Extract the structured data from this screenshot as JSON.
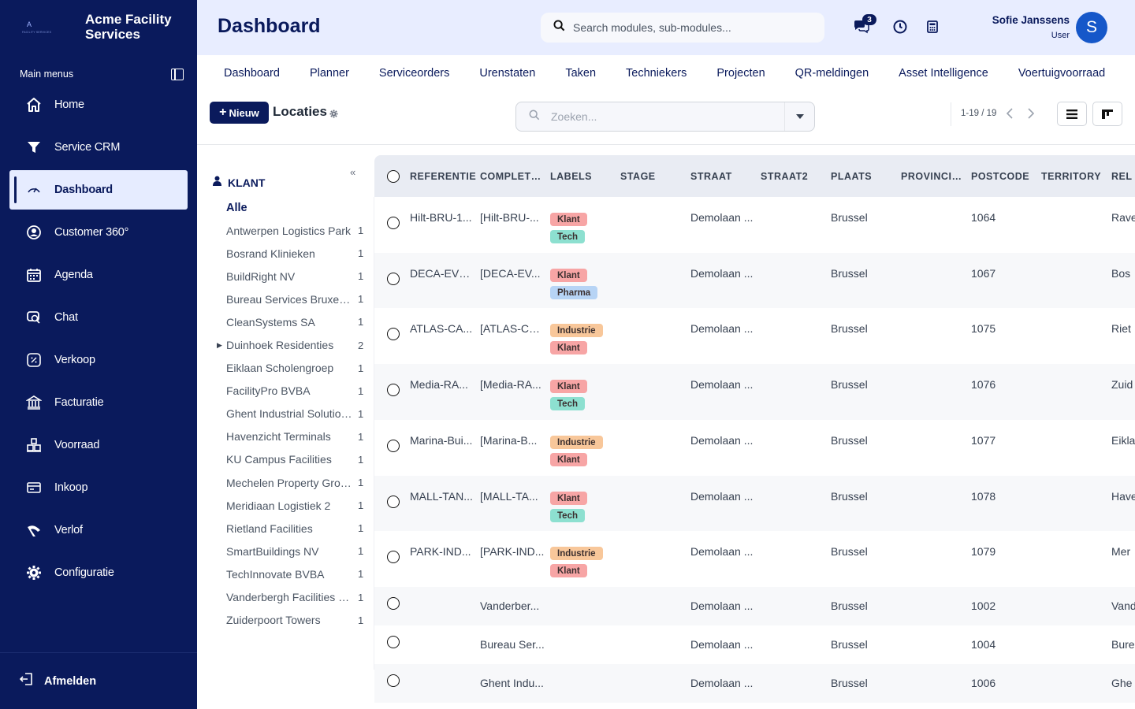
{
  "brand": {
    "logo_letter": "A",
    "logo_sub": "FACILITY SERVICES",
    "name": "Acme Facility Services"
  },
  "sidebar": {
    "section_label": "Main menus",
    "items": [
      {
        "label": "Home",
        "icon": "home-icon"
      },
      {
        "label": "Service CRM",
        "icon": "funnel-icon"
      },
      {
        "label": "Dashboard",
        "icon": "gauge-icon",
        "active": true
      },
      {
        "label": "Customer 360°",
        "icon": "user-circle-icon"
      },
      {
        "label": "Agenda",
        "icon": "calendar-icon"
      },
      {
        "label": "Chat",
        "icon": "chat-icon"
      },
      {
        "label": "Verkoop",
        "icon": "sales-icon"
      },
      {
        "label": "Facturatie",
        "icon": "bank-icon"
      },
      {
        "label": "Voorraad",
        "icon": "warehouse-icon"
      },
      {
        "label": "Inkoop",
        "icon": "card-icon"
      },
      {
        "label": "Verlof",
        "icon": "plane-icon"
      },
      {
        "label": "Configuratie",
        "icon": "gear-icon"
      }
    ],
    "logout_label": "Afmelden"
  },
  "header": {
    "title": "Dashboard",
    "search_placeholder": "Search modules, sub-modules...",
    "chat_badge": "3",
    "user_name": "Sofie Janssens",
    "user_role": "User",
    "avatar_initial": "S"
  },
  "module_tabs": [
    "Dashboard",
    "Planner",
    "Serviceorders",
    "Urenstaten",
    "Taken",
    "Techniekers",
    "Projecten",
    "QR-meldingen",
    "Asset Intelligence",
    "Voertuigvoorraad"
  ],
  "controls": {
    "new_button": "Nieuw",
    "title": "Locaties",
    "search_placeholder": "Zoeken...",
    "pager": "1-19 / 19"
  },
  "filter": {
    "heading": "KLANT",
    "all_label": "Alle",
    "items": [
      {
        "name": "Antwerpen Logistics Park",
        "count": "1"
      },
      {
        "name": "Bosrand Klinieken",
        "count": "1"
      },
      {
        "name": "BuildRight NV",
        "count": "1"
      },
      {
        "name": "Bureau Services Bruxelles",
        "count": "1"
      },
      {
        "name": "CleanSystems SA",
        "count": "1"
      },
      {
        "name": "Duinhoek Residenties",
        "count": "2",
        "expandable": true
      },
      {
        "name": "Eiklaan Scholengroep",
        "count": "1"
      },
      {
        "name": "FacilityPro BVBA",
        "count": "1"
      },
      {
        "name": "Ghent Industrial Solutions",
        "count": "1"
      },
      {
        "name": "Havenzicht Terminals",
        "count": "1"
      },
      {
        "name": "KU Campus Facilities",
        "count": "1"
      },
      {
        "name": "Mechelen Property Group",
        "count": "1"
      },
      {
        "name": "Meridiaan Logistiek 2",
        "count": "1"
      },
      {
        "name": "Rietland Facilities",
        "count": "1"
      },
      {
        "name": "SmartBuildings NV",
        "count": "1"
      },
      {
        "name": "TechInnovate BVBA",
        "count": "1"
      },
      {
        "name": "Vanderbergh Facilities NV",
        "count": "1"
      },
      {
        "name": "Zuiderpoort Towers",
        "count": "1"
      }
    ]
  },
  "table": {
    "columns": [
      "REFERENTIE",
      "COMPLETE...",
      "LABELS",
      "STAGE",
      "STRAAT",
      "STRAAT2",
      "PLAATS",
      "PROVINCIE...",
      "POSTCODE",
      "TERRITORY",
      "REL"
    ],
    "rows": [
      {
        "ref": "Hilt-BRU-1...",
        "complete": "[Hilt-BRU-...",
        "labels": [
          "Klant",
          "Tech"
        ],
        "straat": "Demolaan ...",
        "plaats": "Brussel",
        "postcode": "1064",
        "rel": "Rave"
      },
      {
        "ref": "DECA-EVE...",
        "complete": "[DECA-EV...",
        "labels": [
          "Klant",
          "Pharma"
        ],
        "straat": "Demolaan ...",
        "plaats": "Brussel",
        "postcode": "1067",
        "rel": "Bos"
      },
      {
        "ref": "ATLAS-CA...",
        "complete": "[ATLAS-CA...",
        "labels": [
          "Industrie",
          "Klant"
        ],
        "straat": "Demolaan ...",
        "plaats": "Brussel",
        "postcode": "1075",
        "rel": "Riet"
      },
      {
        "ref": "Media-RA...",
        "complete": "[Media-RA...",
        "labels": [
          "Klant",
          "Tech"
        ],
        "straat": "Demolaan ...",
        "plaats": "Brussel",
        "postcode": "1076",
        "rel": "Zuid"
      },
      {
        "ref": "Marina-Bui...",
        "complete": "[Marina-B...",
        "labels": [
          "Industrie",
          "Klant"
        ],
        "straat": "Demolaan ...",
        "plaats": "Brussel",
        "postcode": "1077",
        "rel": "Eikla"
      },
      {
        "ref": "MALL-TAN...",
        "complete": "[MALL-TA...",
        "labels": [
          "Klant",
          "Tech"
        ],
        "straat": "Demolaan ...",
        "plaats": "Brussel",
        "postcode": "1078",
        "rel": "Have"
      },
      {
        "ref": "PARK-IND...",
        "complete": "[PARK-IND...",
        "labels": [
          "Industrie",
          "Klant"
        ],
        "straat": "Demolaan ...",
        "plaats": "Brussel",
        "postcode": "1079",
        "rel": "Mer"
      },
      {
        "ref": "",
        "complete": "Vanderber...",
        "labels": [],
        "straat": "Demolaan ...",
        "plaats": "Brussel",
        "postcode": "1002",
        "rel": "Vand"
      },
      {
        "ref": "",
        "complete": "Bureau Ser...",
        "labels": [],
        "straat": "Demolaan ...",
        "plaats": "Brussel",
        "postcode": "1004",
        "rel": "Bure"
      },
      {
        "ref": "",
        "complete": "Ghent Indu...",
        "labels": [],
        "straat": "Demolaan ...",
        "plaats": "Brussel",
        "postcode": "1006",
        "rel": "Ghe"
      }
    ]
  },
  "colors": {
    "sidebar_bg": "#0a1a5c",
    "header_bg": "#e8edff",
    "tag_klant": "#f7a5a5",
    "tag_tech": "#8de0d0",
    "tag_pharma": "#b7d4f5",
    "tag_industrie": "#f8c79a",
    "avatar": "#1557c9"
  }
}
